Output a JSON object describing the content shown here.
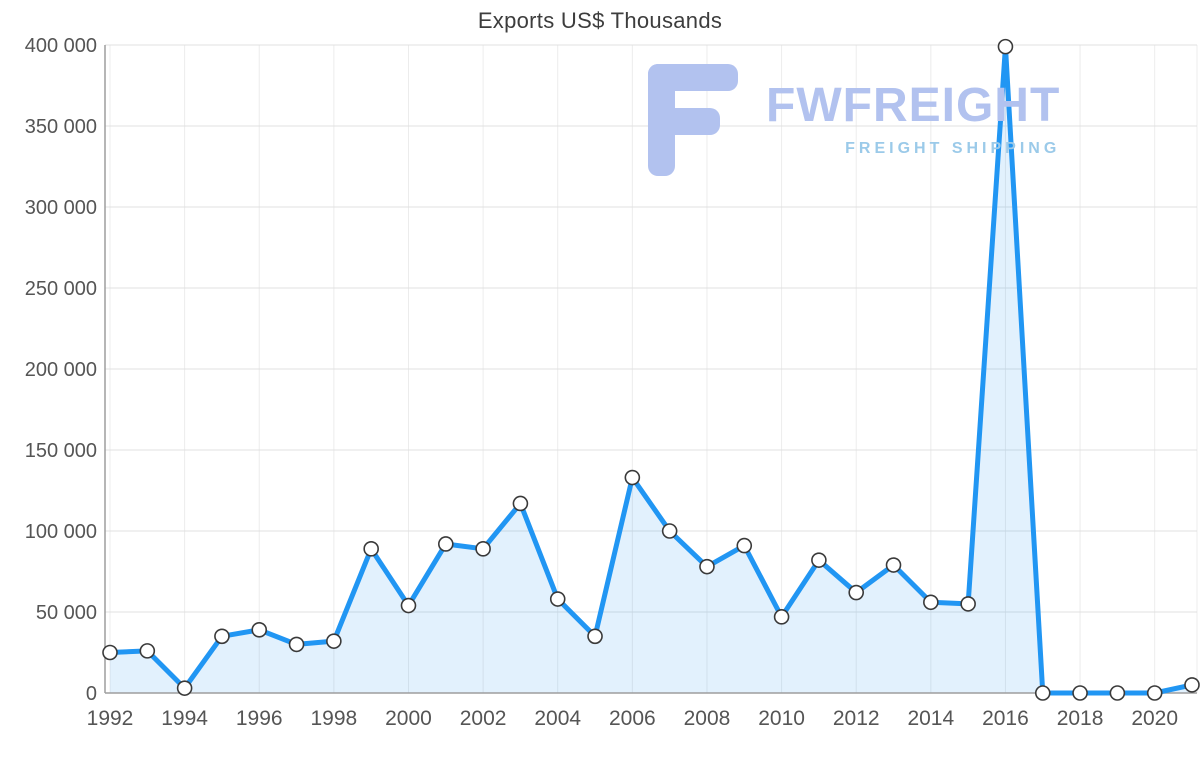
{
  "title": "Exports US$ Thousands",
  "watermark": {
    "brand": "FWFREIGHT",
    "subtitle": "FREIGHT SHIPPING"
  },
  "chart_data": {
    "type": "area",
    "title": "Exports US$ Thousands",
    "x": [
      1992,
      1993,
      1994,
      1995,
      1996,
      1997,
      1998,
      1999,
      2000,
      2001,
      2002,
      2003,
      2004,
      2005,
      2006,
      2007,
      2008,
      2009,
      2010,
      2011,
      2012,
      2013,
      2014,
      2015,
      2016,
      2017,
      2018,
      2019,
      2020,
      2021
    ],
    "values": [
      25000,
      26000,
      3000,
      35000,
      39000,
      30000,
      32000,
      89000,
      54000,
      92000,
      89000,
      117000,
      58000,
      35000,
      133000,
      100000,
      78000,
      91000,
      47000,
      82000,
      62000,
      79000,
      56000,
      55000,
      399000,
      0,
      0,
      0,
      0,
      5000
    ],
    "x_tick_labels": [
      "1992",
      "1994",
      "1996",
      "1998",
      "2000",
      "2002",
      "2004",
      "2006",
      "2008",
      "2010",
      "2012",
      "2014",
      "2016",
      "2018",
      "2020"
    ],
    "y_ticks": [
      0,
      50000,
      100000,
      150000,
      200000,
      250000,
      300000,
      350000,
      400000
    ],
    "y_tick_labels": [
      "0",
      "50 000",
      "100 000",
      "150 000",
      "200 000",
      "250 000",
      "300 000",
      "350 000",
      "400 000"
    ],
    "ylim": [
      0,
      400000
    ],
    "xlabel": "",
    "ylabel": "",
    "grid": "horizontal and vertical gridlines at ticks",
    "legend": "none",
    "colors": {
      "line": "#2196f3",
      "area_fill": "rgba(33,150,243,0.13)",
      "marker_fill": "#ffffff",
      "marker_stroke": "#3a3a3a",
      "gridline": "#e0e0e0",
      "gridline_v": "#ececec",
      "axis": "#9e9e9e",
      "tick_label": "#555555",
      "title": "#3d3d3d",
      "watermark": "#b2c2ef",
      "watermark_sub": "#9bcae9"
    }
  }
}
